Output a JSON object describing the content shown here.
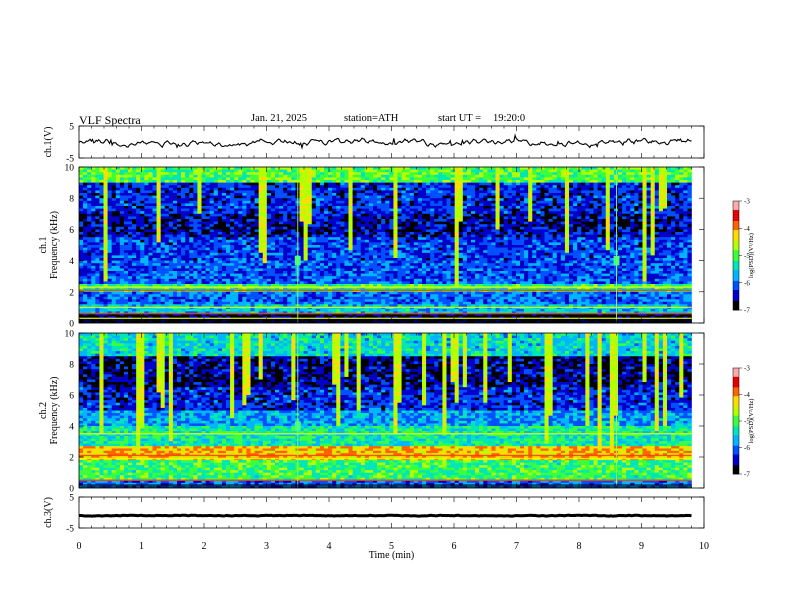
{
  "header": {
    "title": "VLF Spectra",
    "date": "Jan. 21, 2025",
    "station": "station=ATH",
    "start": "start UT =",
    "start_time": "19:20:0"
  },
  "colorbar": {
    "label": "log(PSD)(V²/Hz)",
    "ticks": [
      "-3",
      "-4",
      "-5",
      "-6",
      "-7"
    ],
    "colors": [
      "#000000",
      "#0000c8",
      "#0050ff",
      "#00b4ff",
      "#00e6b4",
      "#3cff3c",
      "#b4ff00",
      "#ffdc00",
      "#ff6400",
      "#e60000",
      "#ffaaaa"
    ]
  },
  "chart_data": [
    {
      "type": "line",
      "name": "ch.1 waveform",
      "ylabel": "ch.1(V)",
      "ylim": [
        -5,
        5
      ],
      "yticks": [
        "5",
        "-5"
      ],
      "xlim": [
        0,
        10
      ],
      "x_extent": [
        0,
        9.8
      ],
      "mean": 0.0,
      "amplitude": 1.5,
      "color": "#000000"
    },
    {
      "type": "heatmap",
      "name": "ch.1 spectrogram",
      "ylabel": "ch.1",
      "ylabel2": "Frequency (kHz)",
      "ylim": [
        0,
        10
      ],
      "yticks": [
        "0",
        "2",
        "4",
        "6",
        "8",
        "10"
      ],
      "xlim": [
        0,
        10
      ],
      "x_extent": [
        0,
        9.8
      ],
      "color_range": [
        -7,
        -3
      ],
      "bands": [
        {
          "f": [
            9.0,
            10.0
          ],
          "level": -5.0
        },
        {
          "f": [
            7.0,
            9.0
          ],
          "level": -6.3
        },
        {
          "f": [
            5.5,
            7.0
          ],
          "level": -6.5
        },
        {
          "f": [
            4.0,
            5.5
          ],
          "level": -6.2
        },
        {
          "f": [
            2.5,
            4.0
          ],
          "level": -6.1
        },
        {
          "f": [
            2.0,
            2.5
          ],
          "level": -5.2
        },
        {
          "f": [
            1.2,
            2.0
          ],
          "level": -6.0
        },
        {
          "f": [
            0.6,
            1.2
          ],
          "level": -5.6
        },
        {
          "f": [
            0.0,
            0.6
          ],
          "level": -6.8
        }
      ],
      "tones_khz": [
        2.3,
        2.1,
        1.0,
        0.6,
        0.3
      ],
      "events_min": [
        3.5,
        8.6
      ]
    },
    {
      "type": "heatmap",
      "name": "ch.2 spectrogram",
      "ylabel": "ch.2",
      "ylabel2": "Frequency (kHz)",
      "ylim": [
        0,
        10
      ],
      "yticks": [
        "0",
        "2",
        "4",
        "6",
        "8",
        "10"
      ],
      "xlim": [
        0,
        10
      ],
      "x_extent": [
        0,
        9.8
      ],
      "color_range": [
        -7,
        -3
      ],
      "bands": [
        {
          "f": [
            8.5,
            10.0
          ],
          "level": -5.5
        },
        {
          "f": [
            6.5,
            8.5
          ],
          "level": -6.6
        },
        {
          "f": [
            5.0,
            6.5
          ],
          "level": -6.3
        },
        {
          "f": [
            4.0,
            5.0
          ],
          "level": -5.8
        },
        {
          "f": [
            2.7,
            4.0
          ],
          "level": -5.3
        },
        {
          "f": [
            1.8,
            2.7
          ],
          "level": -4.2
        },
        {
          "f": [
            0.5,
            1.8
          ],
          "level": -5.1
        },
        {
          "f": [
            0.0,
            0.5
          ],
          "level": -6.0
        }
      ],
      "tones_khz": [
        3.5,
        2.1,
        1.9,
        0.5
      ],
      "events_min": [
        3.5,
        8.6
      ]
    },
    {
      "type": "line",
      "name": "ch.3 waveform",
      "ylabel": "ch.3(V)",
      "ylim": [
        -5,
        5
      ],
      "yticks": [
        "5",
        "-5"
      ],
      "xlim": [
        0,
        10
      ],
      "x_extent": [
        0,
        9.8
      ],
      "mean": -1.0,
      "amplitude": 0.2,
      "color": "#000000"
    }
  ],
  "xaxis": {
    "label": "Time (min)",
    "ticks": [
      "0",
      "1",
      "2",
      "3",
      "4",
      "5",
      "6",
      "7",
      "8",
      "9",
      "10"
    ]
  }
}
